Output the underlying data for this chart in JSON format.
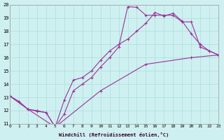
{
  "xlabel": "Windchill (Refroidissement éolien,°C)",
  "bg_color": "#cff0f0",
  "grid_color": "#aadddd",
  "line_color": "#993399",
  "xlim": [
    0,
    23
  ],
  "ylim": [
    11,
    20
  ],
  "xticks": [
    0,
    1,
    2,
    3,
    4,
    5,
    6,
    7,
    8,
    9,
    10,
    11,
    12,
    13,
    14,
    15,
    16,
    17,
    18,
    19,
    20,
    21,
    22,
    23
  ],
  "yticks": [
    11,
    12,
    13,
    14,
    15,
    16,
    17,
    18,
    19,
    20
  ],
  "line1_x": [
    0,
    1,
    2,
    3,
    4,
    5,
    6,
    7,
    8,
    9,
    10,
    11,
    12,
    13,
    14,
    15,
    16,
    17,
    18,
    19,
    20,
    21,
    22,
    23
  ],
  "line1_y": [
    13.1,
    12.7,
    12.1,
    12.0,
    11.85,
    10.75,
    12.8,
    14.3,
    14.5,
    15.0,
    15.8,
    16.5,
    17.0,
    17.4,
    18.0,
    18.6,
    19.4,
    19.15,
    19.35,
    18.75,
    17.8,
    17.0,
    16.5,
    16.2
  ],
  "line2_x": [
    0,
    2,
    3,
    4,
    5,
    6,
    7,
    8,
    9,
    10,
    11,
    12,
    13,
    14,
    15,
    16,
    17,
    18,
    19,
    20,
    21,
    22,
    23
  ],
  "line2_y": [
    13.1,
    12.1,
    11.95,
    11.85,
    10.75,
    11.75,
    13.5,
    14.0,
    14.5,
    15.3,
    16.0,
    16.8,
    19.85,
    19.8,
    19.2,
    19.2,
    19.2,
    19.2,
    18.7,
    18.7,
    16.8,
    16.5,
    16.2
  ],
  "line3_x": [
    0,
    2,
    5,
    10,
    15,
    20,
    23
  ],
  "line3_y": [
    13.1,
    12.1,
    10.75,
    13.5,
    15.5,
    16.0,
    16.2
  ]
}
